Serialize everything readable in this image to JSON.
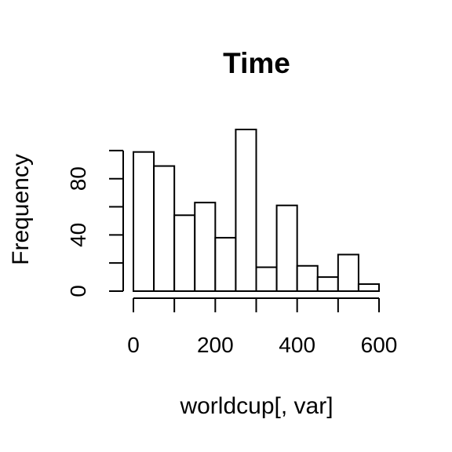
{
  "chart_data": {
    "type": "bar",
    "title": "Time",
    "xlabel": "worldcup[, var]",
    "ylabel": "Frequency",
    "bins": [
      {
        "from": 0,
        "to": 50,
        "count": 99
      },
      {
        "from": 50,
        "to": 100,
        "count": 89
      },
      {
        "from": 100,
        "to": 150,
        "count": 54
      },
      {
        "from": 150,
        "to": 200,
        "count": 63
      },
      {
        "from": 200,
        "to": 250,
        "count": 38
      },
      {
        "from": 250,
        "to": 300,
        "count": 115
      },
      {
        "from": 300,
        "to": 350,
        "count": 17
      },
      {
        "from": 350,
        "to": 400,
        "count": 61
      },
      {
        "from": 400,
        "to": 450,
        "count": 18
      },
      {
        "from": 450,
        "to": 500,
        "count": 10
      },
      {
        "from": 500,
        "to": 550,
        "count": 26
      },
      {
        "from": 550,
        "to": 600,
        "count": 5
      }
    ],
    "x_ticks": [
      0,
      100,
      200,
      300,
      400,
      500,
      600
    ],
    "x_tick_labels": [
      {
        "value": 0,
        "text": "0"
      },
      {
        "value": 200,
        "text": "200"
      },
      {
        "value": 400,
        "text": "400"
      },
      {
        "value": 600,
        "text": "600"
      }
    ],
    "y_ticks": [
      0,
      20,
      40,
      60,
      80,
      100
    ],
    "y_tick_labels": [
      {
        "value": 0,
        "text": "0"
      },
      {
        "value": 40,
        "text": "40"
      },
      {
        "value": 80,
        "text": "80"
      }
    ],
    "xlim": [
      0,
      600
    ],
    "ylim": [
      0,
      115
    ],
    "grid": false,
    "legend": "none",
    "bar_fill": "#ffffff",
    "bar_stroke": "#000000"
  }
}
